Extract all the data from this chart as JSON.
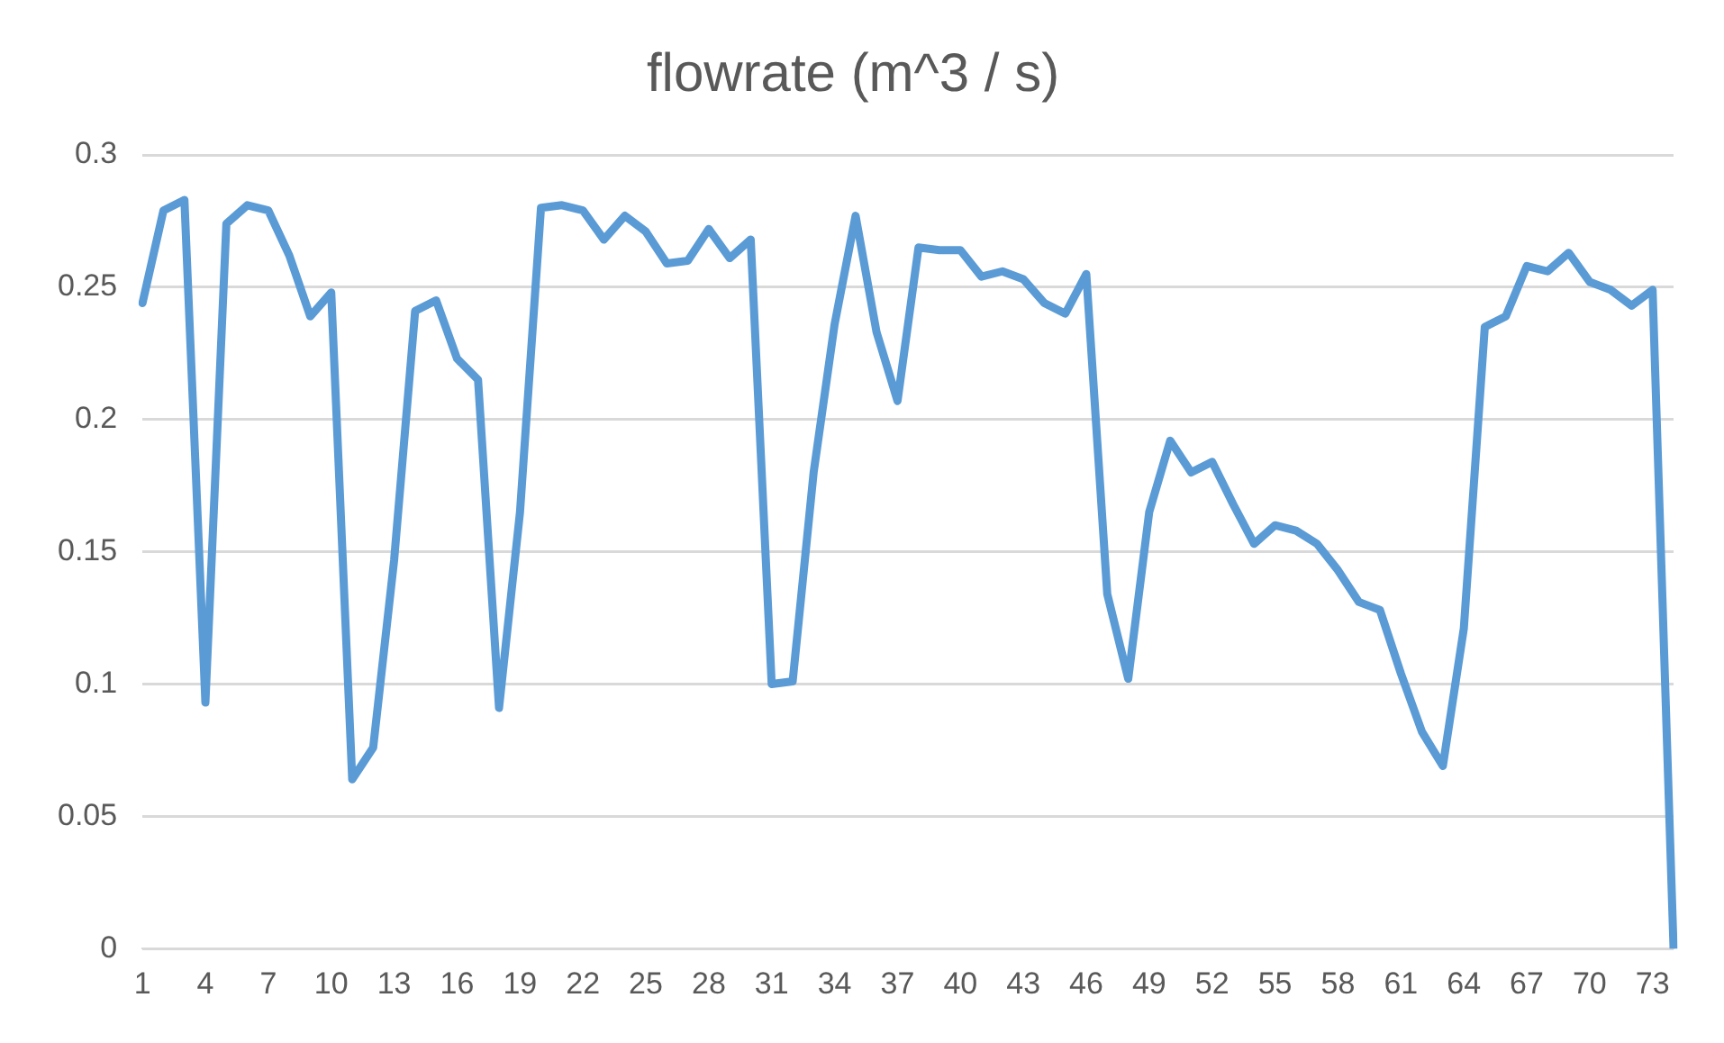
{
  "chart_data": {
    "type": "line",
    "title": "flowrate (m^3 / s)",
    "categories": [
      "1",
      null,
      null,
      "4",
      null,
      null,
      "7",
      null,
      null,
      "10",
      null,
      null,
      "13",
      null,
      null,
      "16",
      null,
      null,
      "19",
      null,
      null,
      "22",
      null,
      null,
      "25",
      null,
      null,
      "28",
      null,
      null,
      "31",
      null,
      null,
      "34",
      null,
      null,
      "37",
      null,
      null,
      "40",
      null,
      null,
      "43",
      null,
      null,
      "46",
      null,
      null,
      "49",
      null,
      null,
      "52",
      null,
      null,
      "55",
      null,
      null,
      "58",
      null,
      null,
      "61",
      null,
      null,
      "64",
      null,
      null,
      "67",
      null,
      null,
      "70",
      null,
      null,
      "73",
      null
    ],
    "series": [
      {
        "color": "#5b9bd5",
        "values": [
          0.244,
          0.279,
          0.283,
          0.093,
          0.274,
          0.281,
          0.279,
          0.262,
          0.239,
          0.248,
          0.064,
          0.076,
          0.147,
          0.241,
          0.245,
          0.223,
          0.215,
          0.091,
          0.165,
          0.28,
          0.281,
          0.279,
          0.268,
          0.277,
          0.271,
          0.259,
          0.26,
          0.272,
          0.261,
          0.268,
          0.1,
          0.101,
          0.18,
          0.236,
          0.277,
          0.233,
          0.207,
          0.265,
          0.264,
          0.264,
          0.254,
          0.256,
          0.253,
          0.244,
          0.24,
          0.255,
          0.134,
          0.102,
          0.165,
          0.192,
          0.18,
          0.184,
          0.168,
          0.153,
          0.16,
          0.158,
          0.153,
          0.143,
          0.131,
          0.128,
          0.104,
          0.082,
          0.069,
          0.121,
          0.235,
          0.239,
          0.258,
          0.256,
          0.263,
          0.252,
          0.249,
          0.243,
          0.249,
          0
        ]
      }
    ],
    "ylim": [
      0,
      0.3
    ],
    "yticks": [
      0,
      0.05,
      0.1,
      0.15,
      0.2,
      0.25,
      0.3
    ],
    "grid": "y",
    "legend": false,
    "marker": "none",
    "line_style": "solid"
  }
}
